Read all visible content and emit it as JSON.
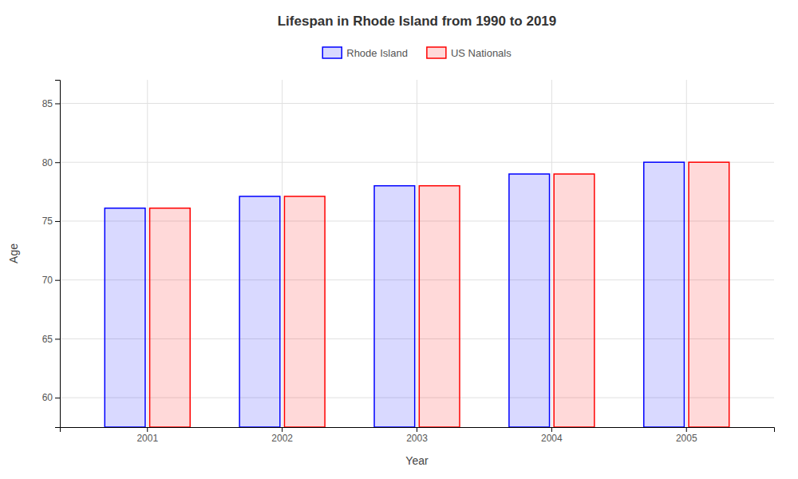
{
  "chart_data": {
    "type": "bar",
    "title": "Lifespan in Rhode Island from 1990 to 2019",
    "xlabel": "Year",
    "ylabel": "Age",
    "categories": [
      "2001",
      "2002",
      "2003",
      "2004",
      "2005"
    ],
    "series": [
      {
        "name": "Rhode Island",
        "color": "#0000ff",
        "values": [
          76.1,
          77.1,
          78.0,
          79.0,
          80.0
        ]
      },
      {
        "name": "US Nationals",
        "color": "#ff0000",
        "values": [
          76.1,
          77.1,
          78.0,
          79.0,
          80.0
        ]
      }
    ],
    "ylim": [
      57.5,
      87
    ],
    "yticks": [
      60,
      65,
      70,
      75,
      80,
      85
    ],
    "grid": true,
    "legend": "top"
  }
}
